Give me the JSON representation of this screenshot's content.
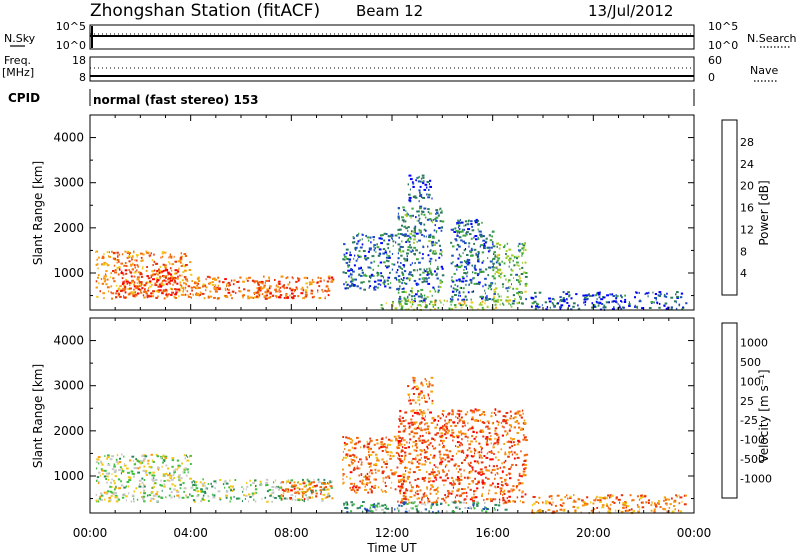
{
  "header": {
    "station": "Zhongshan Station (fitACF)",
    "beam": "Beam 12",
    "date": "13/Jul/2012"
  },
  "noise_panel": {
    "left_label": "N.Sky",
    "left_ticks": [
      "10^5",
      "10^0"
    ],
    "right_label": "N.Search",
    "right_ticks": [
      "10^5",
      "10^0"
    ]
  },
  "freq_panel": {
    "left_label_1": "Freq.",
    "left_label_2": "[MHz]",
    "left_ticks": [
      "18",
      "8"
    ],
    "right_label": "Nave",
    "right_ticks": [
      "60",
      "0"
    ]
  },
  "cpid": {
    "label": "CPID",
    "text": "normal (fast stereo) 153"
  },
  "chart_data": [
    {
      "type": "heatmap",
      "quantity": "power",
      "xlabel": "Time UT",
      "ylabel": "Slant Range [km]",
      "xlim": [
        0,
        24
      ],
      "ylim": [
        180,
        4500
      ],
      "y_ticks": [
        "1000",
        "2000",
        "3000",
        "4000"
      ],
      "colorbar": {
        "label": "Power [dB]",
        "ticks": [
          "28",
          "24",
          "20",
          "16",
          "12",
          "8",
          "4"
        ],
        "colors": [
          "#0000ff",
          "#1e4fbf",
          "#2b7a5c",
          "#3da83d",
          "#9fcd2a",
          "#f0c814",
          "#f79b0f",
          "#f26a0a",
          "#e8300c",
          "#ff0000"
        ]
      },
      "regions": [
        {
          "t0": 0.2,
          "t1": 4.0,
          "r0": 450,
          "r1": 1500,
          "level": 0.7
        },
        {
          "t0": 1.0,
          "t1": 3.5,
          "r0": 500,
          "r1": 1100,
          "level": 0.9
        },
        {
          "t0": 4.0,
          "t1": 9.6,
          "r0": 450,
          "r1": 950,
          "level": 0.75
        },
        {
          "t0": 6.5,
          "t1": 8.0,
          "r0": 450,
          "r1": 850,
          "level": 0.85
        },
        {
          "t0": 10.0,
          "t1": 12.5,
          "r0": 650,
          "r1": 1900,
          "level": 0.2
        },
        {
          "t0": 12.2,
          "t1": 14.0,
          "r0": 300,
          "r1": 2500,
          "level": 0.25
        },
        {
          "t0": 14.3,
          "t1": 16.0,
          "r0": 400,
          "r1": 2200,
          "level": 0.2
        },
        {
          "t0": 16.0,
          "t1": 17.3,
          "r0": 300,
          "r1": 1700,
          "level": 0.35
        },
        {
          "t0": 12.6,
          "t1": 13.6,
          "r0": 2600,
          "r1": 3200,
          "level": 0.15
        },
        {
          "t0": 11.5,
          "t1": 17.0,
          "r0": 200,
          "r1": 420,
          "level": 0.45
        },
        {
          "t0": 17.5,
          "t1": 23.7,
          "r0": 200,
          "r1": 600,
          "level": 0.15
        }
      ]
    },
    {
      "type": "heatmap",
      "quantity": "velocity",
      "xlabel": "Time UT",
      "ylabel": "Slant Range [km]",
      "xlim": [
        0,
        24
      ],
      "ylim": [
        180,
        4500
      ],
      "y_ticks": [
        "1000",
        "2000",
        "3000",
        "4000"
      ],
      "x_ticks": [
        "00:00",
        "04:00",
        "08:00",
        "12:00",
        "16:00",
        "20:00",
        "00:00"
      ],
      "colorbar": {
        "label": "Velocity [m s⁻¹]",
        "ticks": [
          "1000",
          "500",
          "100",
          "25",
          "-25",
          "-100",
          "-500",
          "-1000"
        ],
        "colors": [
          "#ff0000",
          "#e8300c",
          "#f26a0a",
          "#f79b0f",
          "#f0c814",
          "#c8c8c8",
          "#3fbf3f",
          "#2b8a5c",
          "#1e4fbf",
          "#2020d0"
        ]
      },
      "regions": [
        {
          "t0": 0.2,
          "t1": 4.0,
          "r0": 450,
          "r1": 1500,
          "level": 0.55
        },
        {
          "t0": 4.0,
          "t1": 9.6,
          "r0": 450,
          "r1": 950,
          "level": 0.6
        },
        {
          "t0": 7.5,
          "t1": 9.6,
          "r0": 500,
          "r1": 900,
          "level": 0.25
        },
        {
          "t0": 10.0,
          "t1": 12.5,
          "r0": 650,
          "r1": 1900,
          "level": 0.25
        },
        {
          "t0": 12.2,
          "t1": 17.3,
          "r0": 400,
          "r1": 2500,
          "level": 0.22
        },
        {
          "t0": 12.6,
          "t1": 13.6,
          "r0": 2600,
          "r1": 3200,
          "level": 0.25
        },
        {
          "t0": 10.0,
          "t1": 16.5,
          "r0": 200,
          "r1": 450,
          "level": 0.7
        },
        {
          "t0": 17.5,
          "t1": 23.7,
          "r0": 200,
          "r1": 600,
          "level": 0.3
        }
      ]
    }
  ]
}
